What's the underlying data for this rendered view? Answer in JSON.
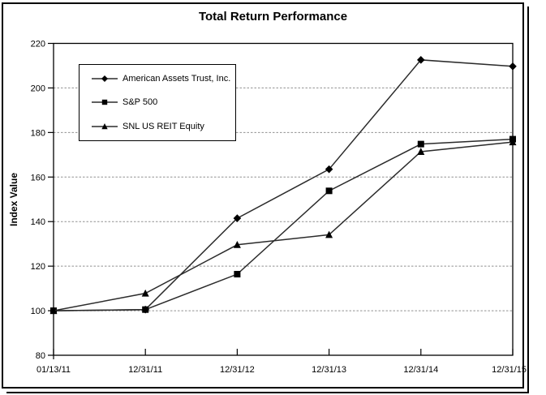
{
  "chart_data": {
    "type": "line",
    "title": "Total Return Performance",
    "xlabel": "",
    "ylabel": "Index Value",
    "categories": [
      "01/13/11",
      "12/31/11",
      "12/31/12",
      "12/31/13",
      "12/31/14",
      "12/31/15"
    ],
    "series": [
      {
        "name": "American Assets Trust, Inc.",
        "marker": "diamond",
        "values": [
          100.0,
          100.5,
          141.5,
          163.5,
          212.6,
          209.7
        ]
      },
      {
        "name": "S&P 500",
        "marker": "square",
        "values": [
          100.0,
          100.5,
          116.4,
          153.8,
          174.8,
          177.0
        ]
      },
      {
        "name": "SNL US REIT Equity",
        "marker": "triangle",
        "values": [
          100.0,
          107.8,
          129.6,
          134.1,
          171.4,
          175.7
        ]
      }
    ],
    "ylim": [
      80,
      220
    ],
    "ytick_step": 20,
    "grid": "horizontal-dashed",
    "legend_position": "upper-left-inside",
    "line_color": "#2b2b2b",
    "marker_color": "#000000",
    "grid_color": "#909090",
    "axis_color": "#000000"
  }
}
